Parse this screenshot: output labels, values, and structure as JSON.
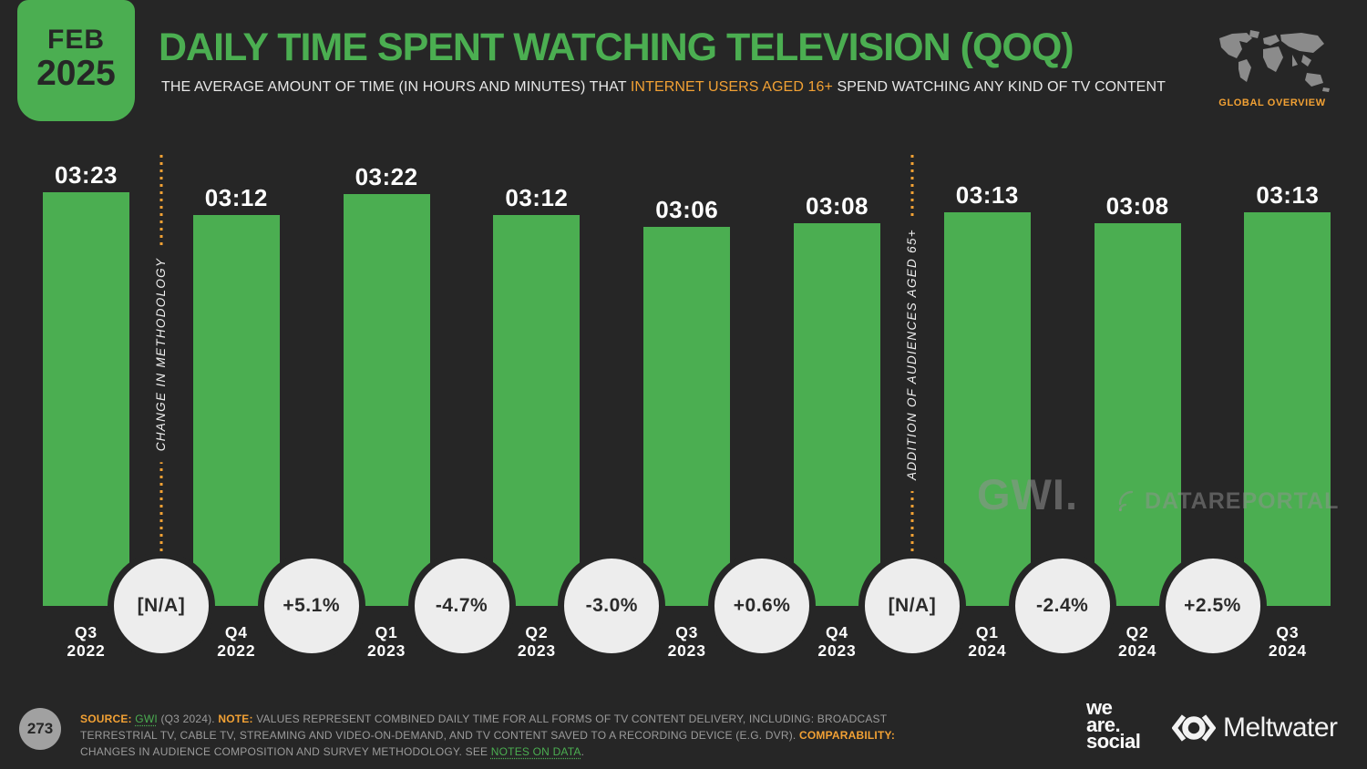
{
  "slide": {
    "date_badge": {
      "month": "FEB",
      "year": "2025"
    },
    "title": "DAILY TIME SPENT WATCHING TELEVISION (QOQ)",
    "subtitle_prefix": "THE AVERAGE AMOUNT OF TIME (IN HOURS AND MINUTES) THAT ",
    "subtitle_highlight": "INTERNET USERS AGED 16+",
    "subtitle_suffix": " SPEND WATCHING ANY KIND OF TV CONTENT",
    "region_label": "GLOBAL OVERVIEW",
    "page_number": "273",
    "watermark_gwi": "GWI.",
    "watermark_datareportal": "DATAREPORTAL"
  },
  "chart_data": {
    "type": "bar",
    "title": "Daily time spent watching television (QoQ)",
    "unit": "hours:minutes per day",
    "categories": [
      "Q3 2022",
      "Q4 2022",
      "Q1 2023",
      "Q2 2023",
      "Q3 2023",
      "Q4 2023",
      "Q1 2024",
      "Q2 2024",
      "Q3 2024"
    ],
    "values_hhmm": [
      "03:23",
      "03:12",
      "03:22",
      "03:12",
      "03:06",
      "03:08",
      "03:13",
      "03:08",
      "03:13"
    ],
    "values_minutes": [
      203,
      192,
      202,
      192,
      186,
      188,
      193,
      188,
      193
    ],
    "qoq_change": [
      "[N/A]",
      "+5.1%",
      "-4.7%",
      "-3.0%",
      "+0.6%",
      "[N/A]",
      "-2.4%",
      "+2.5%"
    ],
    "annotations": [
      {
        "label": "CHANGE IN METHODOLOGY",
        "gap_index": 0
      },
      {
        "label": "ADDITION OF AUDIENCES AGED 65+",
        "gap_index": 5
      }
    ],
    "ylim": [
      0,
      203
    ],
    "bar_color": "#4bae51",
    "grid": false,
    "legend": false
  },
  "footer": {
    "source_label": "SOURCE:",
    "source_link": "GWI",
    "source_period": " (Q3 2024). ",
    "note_label": "NOTE:",
    "note_text": " VALUES REPRESENT COMBINED DAILY TIME FOR ALL FORMS OF TV CONTENT DELIVERY, INCLUDING: BROADCAST TERRESTRIAL TV, CABLE TV, STREAMING AND VIDEO-ON-DEMAND, AND TV CONTENT SAVED TO A RECORDING DEVICE (E.G. DVR). ",
    "comparability_label": "COMPARABILITY:",
    "comparability_text": " CHANGES IN AUDIENCE COMPOSITION AND SURVEY METHODOLOGY. SEE ",
    "notes_link": "NOTES ON DATA",
    "notes_suffix": ".",
    "brand_we": "we",
    "brand_are": "are.",
    "brand_social": "social",
    "brand_meltwater": "Meltwater"
  },
  "colors": {
    "background": "#262626",
    "green": "#4bae51",
    "orange": "#f2a134",
    "circle_fill": "#ededed",
    "footer_gray": "#9b9b9b",
    "map_gray": "#8b8b8b"
  }
}
